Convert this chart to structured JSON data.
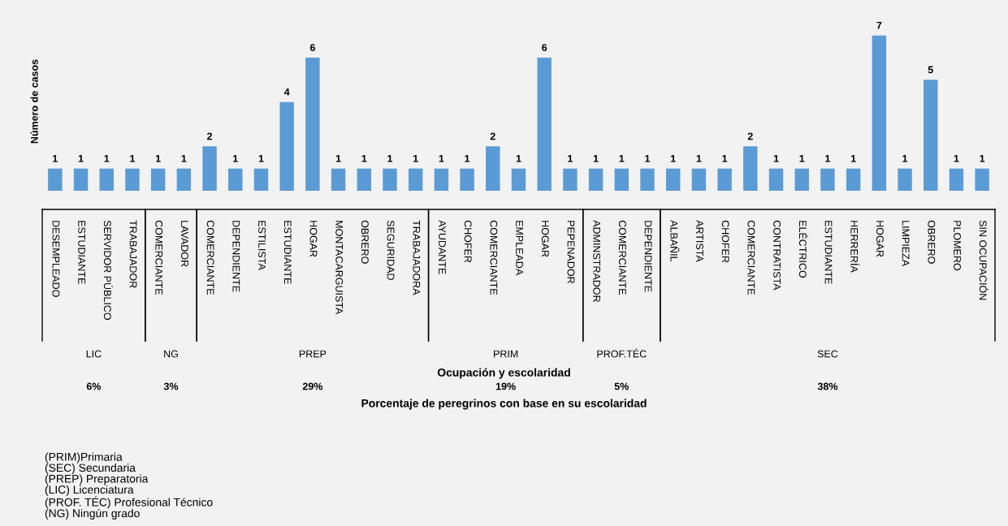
{
  "chart_data": {
    "type": "bar",
    "ylabel": "Número de casos",
    "xlabel": "Ocupación y escolaridad",
    "categories": [
      "DESEMPLEADO",
      "ESTUDIANTE",
      "SERVIDOR PÚBLICO",
      "TRABAJADOR",
      "COMERCIANTE",
      "LAVADOR",
      "COMERCIANTE",
      "DEPENDIENTE",
      "ESTILISTA",
      "ESTUDIANTE",
      "HOGAR",
      "MONTACARGUISTA",
      "OBRERO",
      "SEGURIDAD",
      "TRABAJADORA",
      "AYUDANTE",
      "CHOFER",
      "COMERCIANTE",
      "EMPLEADA",
      "HOGAR",
      "PEPENADOR",
      "ADMINSTRADOR",
      "COMERCIANTE",
      "DEPENDIENTE",
      "ALBAÑIL",
      "ARTISTA",
      "CHOFER",
      "COMERCIANTE",
      "CONTRATISTA",
      "ELÉCTRICO",
      "ESTUDIANTE",
      "HERRERÍA",
      "HOGAR",
      "LIMPIEZA",
      "OBRERO",
      "PLOMERO",
      "SIN OCUPACIÓN"
    ],
    "series": [
      {
        "color": "#5b9bd5",
        "values": [
          1,
          1,
          1,
          1,
          null,
          null,
          null,
          null,
          null,
          null,
          null,
          null,
          null,
          null,
          null,
          null,
          null,
          null,
          null,
          null,
          null,
          null,
          null,
          null,
          null,
          null,
          null,
          null,
          null,
          null,
          null,
          null,
          null,
          null,
          null,
          null,
          null
        ]
      },
      {
        "color": "#5b9bd5",
        "values": [
          null,
          null,
          null,
          null,
          1,
          1,
          null,
          null,
          null,
          null,
          null,
          null,
          null,
          null,
          null,
          null,
          null,
          null,
          null,
          null,
          null,
          null,
          null,
          null,
          null,
          null,
          null,
          null,
          null,
          null,
          null,
          null,
          null,
          null,
          null,
          null,
          null
        ]
      },
      {
        "color": "#5b9bd5",
        "values": [
          null,
          null,
          null,
          null,
          null,
          null,
          2,
          1,
          1,
          4,
          6,
          1,
          1,
          1,
          1,
          null,
          null,
          null,
          null,
          null,
          null,
          null,
          null,
          null,
          null,
          null,
          null,
          null,
          null,
          null,
          null,
          null,
          null,
          null,
          null,
          null,
          null
        ]
      },
      {
        "color": "#5b9bd5",
        "values": [
          null,
          null,
          null,
          null,
          null,
          null,
          null,
          null,
          null,
          null,
          null,
          null,
          null,
          null,
          null,
          1,
          1,
          2,
          1,
          6,
          1,
          null,
          null,
          null,
          null,
          null,
          null,
          null,
          null,
          null,
          null,
          null,
          null,
          null,
          null,
          null,
          null
        ]
      },
      {
        "color": "#5b9bd5",
        "values": [
          null,
          null,
          null,
          null,
          null,
          null,
          null,
          null,
          null,
          null,
          null,
          null,
          null,
          null,
          null,
          null,
          null,
          null,
          null,
          null,
          null,
          1,
          1,
          1,
          null,
          null,
          null,
          null,
          null,
          null,
          null,
          null,
          null,
          null,
          null,
          null,
          null
        ]
      },
      {
        "color": "#5b9bd5",
        "values": [
          null,
          null,
          null,
          null,
          null,
          null,
          null,
          null,
          null,
          null,
          null,
          null,
          null,
          null,
          null,
          null,
          null,
          null,
          null,
          null,
          null,
          null,
          null,
          null,
          1,
          1,
          1,
          2,
          1,
          1,
          1,
          1,
          7,
          1,
          5,
          1,
          1
        ]
      }
    ],
    "data_labels": true,
    "grid": false,
    "legend": false,
    "annotations": [
      "LIC",
      "NG",
      "PREP",
      "PRIM",
      "PROF.TÉC",
      "SEC",
      "6%",
      "3%",
      "29%",
      "19%",
      "5%",
      "38%",
      "Porcentaje de peregrinos con base en su escolaridad",
      "(PRIM)Primaria\n(SEC) Secundaria\n(PREP) Preparatoria\n(LIC) Licenciatura\n(PROF. TÉC) Profesional Técnico\n(NG) Ningún grado"
    ]
  }
}
